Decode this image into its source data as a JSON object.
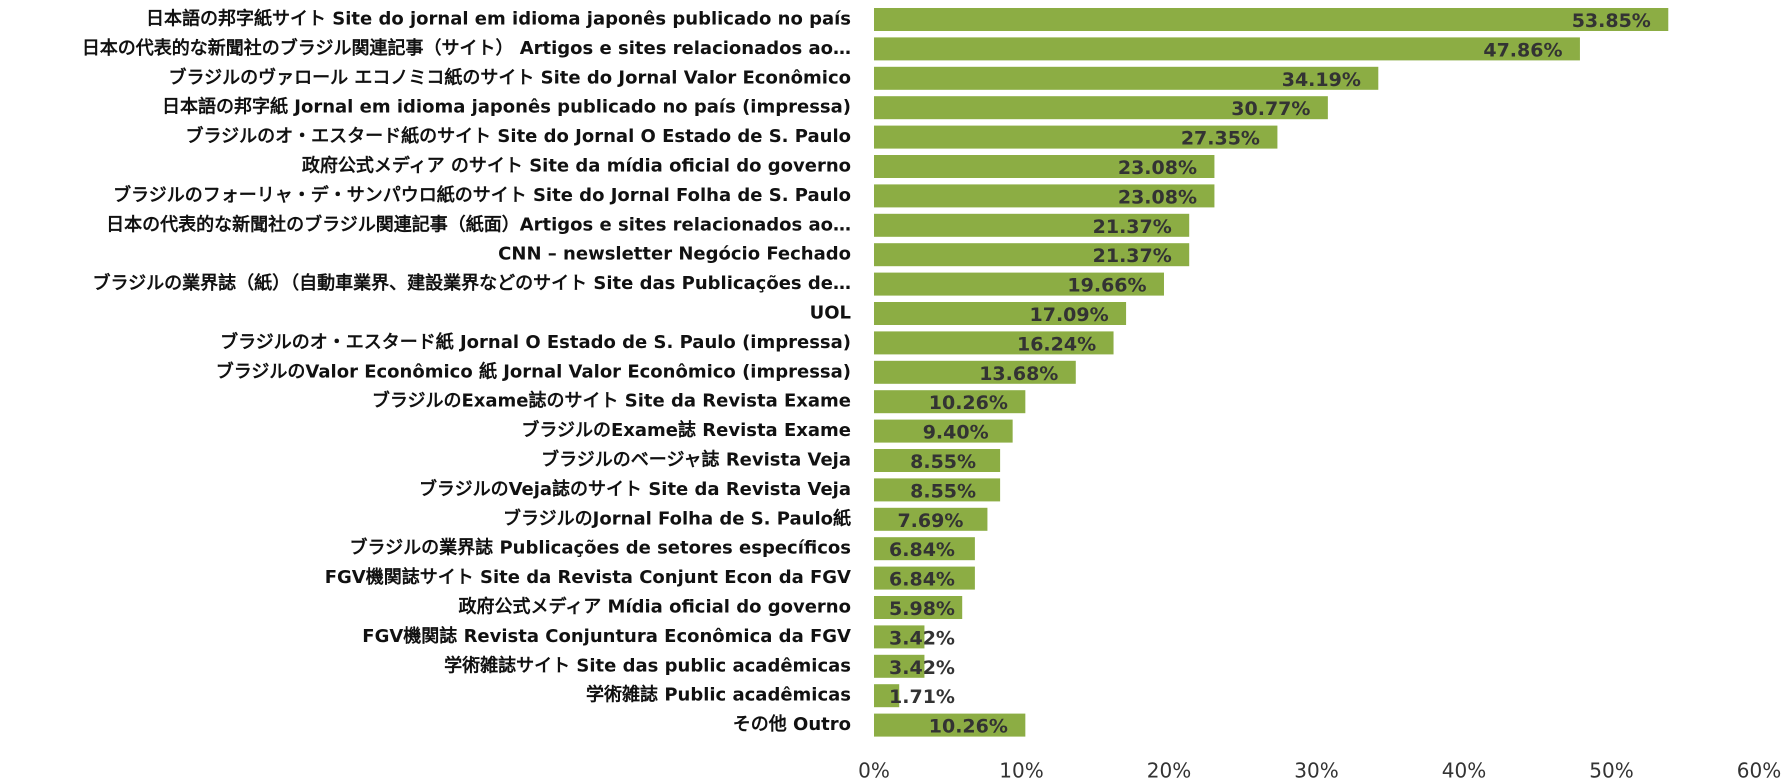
{
  "chart_data": {
    "type": "bar",
    "orientation": "horizontal",
    "categories": [
      "日本語の邦字紙サイト Site do jornal em idioma japonês publicado no país",
      "日本の代表的な新聞社のブラジル関連記事（サイト） Artigos e sites relacionados ao…",
      "ブラジルのヴァロール エコノミコ紙のサイト Site do Jornal Valor Econômico",
      "日本語の邦字紙 Jornal em idioma japonês publicado no país (impressa)",
      "ブラジルのオ・エスタード紙のサイト Site do Jornal O Estado de S. Paulo",
      "政府公式メディア のサイト Site da mídia oficial do governo",
      "ブラジルのフォーリャ・デ・サンパウロ紙のサイト Site do Jornal Folha de S. Paulo",
      "日本の代表的な新聞社のブラジル関連記事（紙面）Artigos e sites relacionados ao…",
      "CNN – newsletter Negócio Fechado",
      "ブラジルの業界誌（紙）（自動車業界、建設業界などのサイト Site das Publicações de…",
      "UOL",
      "ブラジルのオ・エスタード紙 Jornal O Estado de S. Paulo (impressa)",
      "ブラジルのValor Econômico 紙 Jornal Valor Econômico (impressa)",
      "ブラジルのExame誌のサイト Site da Revista Exame",
      "ブラジルのExame誌 Revista Exame",
      "ブラジルのベージャ誌 Revista Veja",
      "ブラジルのVeja誌のサイト Site da Revista Veja",
      "ブラジルのJornal Folha de S. Paulo紙",
      "ブラジルの業界誌 Publicações de setores específicos",
      "FGV機関誌サイト Site da Revista Conjunt Econ da FGV",
      "政府公式メディア Mídia oficial do governo",
      "FGV機関誌 Revista Conjuntura Econômica da FGV",
      "学術雑誌サイト Site das public acadêmicas",
      "学術雑誌 Public acadêmicas",
      "その他 Outro"
    ],
    "values": [
      53.85,
      47.86,
      34.19,
      30.77,
      27.35,
      23.08,
      23.08,
      21.37,
      21.37,
      19.66,
      17.09,
      16.24,
      13.68,
      10.26,
      9.4,
      8.55,
      8.55,
      7.69,
      6.84,
      6.84,
      5.98,
      3.42,
      3.42,
      1.71,
      10.26
    ],
    "value_labels": [
      "53.85%",
      "47.86%",
      "34.19%",
      "30.77%",
      "27.35%",
      "23.08%",
      "23.08%",
      "21.37%",
      "21.37%",
      "19.66%",
      "17.09%",
      "16.24%",
      "13.68%",
      "10.26%",
      "9.40%",
      "8.55%",
      "8.55%",
      "7.69%",
      "6.84%",
      "6.84%",
      "5.98%",
      "3.42%",
      "3.42%",
      "1.71%",
      "10.26%"
    ],
    "color": "#8cad44",
    "xlim": [
      0,
      60
    ],
    "xticks": [
      {
        "value": 0,
        "label": "0%"
      },
      {
        "value": 10,
        "label": "10%"
      },
      {
        "value": 20,
        "label": "20%"
      },
      {
        "value": 30,
        "label": "30%"
      },
      {
        "value": 40,
        "label": "40%"
      },
      {
        "value": 50,
        "label": "50%"
      },
      {
        "value": 60,
        "label": "60%"
      }
    ],
    "grid": false
  }
}
